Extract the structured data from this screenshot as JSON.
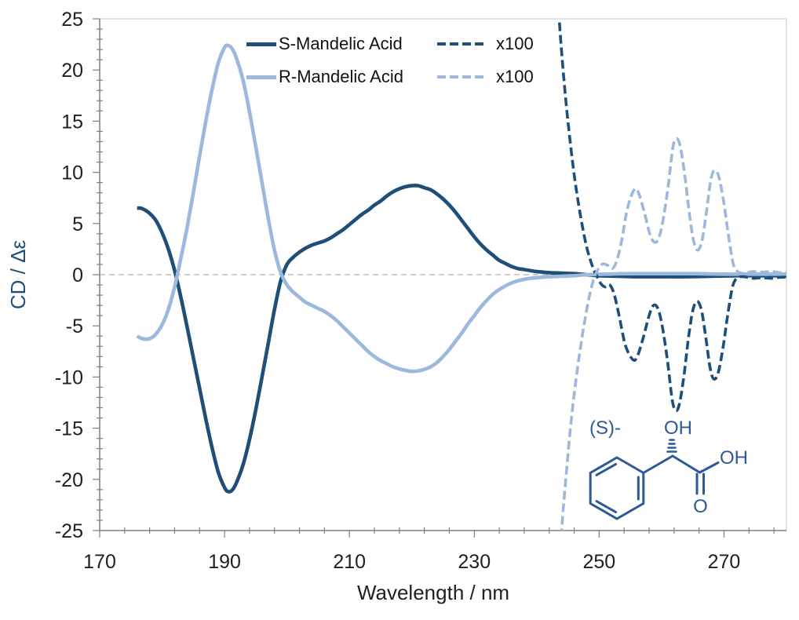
{
  "figure": {
    "y_axis_title": "CD / Δε",
    "x_axis_title": "Wavelength / nm"
  },
  "legend": {
    "rows": [
      {
        "series_label": "S-Mandelic Acid",
        "scale_label": "x100"
      },
      {
        "series_label": "R-Mandelic Acid",
        "scale_label": "x100"
      }
    ]
  },
  "structure": {
    "stereo_label": "(S)-",
    "hydroxyl_label": "OH",
    "carboxyl_oh_label": "OH",
    "carbonyl_o_label": "O"
  },
  "colors": {
    "s_series": "#1F4E79",
    "r_series": "#9CB8DC",
    "structure": "#2D5A96",
    "zero_gridline": "#BFBFBF",
    "axis": "#7F7F7F",
    "frame_border": "#D9D9D9",
    "tick_text": "#1F1F1F"
  },
  "chart_data": {
    "type": "line",
    "title": "",
    "xlabel": "Wavelength / nm",
    "ylabel": "CD / Δε",
    "xlim": [
      170,
      280
    ],
    "ylim": [
      -25,
      25
    ],
    "x_major_ticks": [
      170,
      190,
      210,
      230,
      250,
      270
    ],
    "x_minor_unit": 4,
    "y_tick_values": [
      25,
      20,
      15,
      10,
      5,
      0,
      -5,
      -10,
      -15,
      -20,
      -25
    ],
    "y_major_unit": 5,
    "y_minor_unit": 1,
    "zero_gridline": true,
    "legend_position": "top-center-inside",
    "series": [
      {
        "name": "S-Mandelic Acid",
        "style": "solid",
        "color": "#1F4E79",
        "points": [
          [
            176,
            6.5
          ],
          [
            176.6,
            6.5
          ],
          [
            177.3,
            6.3
          ],
          [
            178,
            6.0
          ],
          [
            179,
            5.3
          ],
          [
            180,
            4.1
          ],
          [
            181,
            2.5
          ],
          [
            182,
            0.4
          ],
          [
            183,
            -2.2
          ],
          [
            184,
            -5.1
          ],
          [
            185,
            -8.1
          ],
          [
            186,
            -11.1
          ],
          [
            187,
            -14.1
          ],
          [
            188,
            -16.9
          ],
          [
            189,
            -19.3
          ],
          [
            190,
            -20.8
          ],
          [
            190.6,
            -21.2
          ],
          [
            191.3,
            -21.0
          ],
          [
            192,
            -20.2
          ],
          [
            193,
            -18.5
          ],
          [
            194,
            -16.1
          ],
          [
            195,
            -13.2
          ],
          [
            196,
            -10.0
          ],
          [
            197,
            -6.7
          ],
          [
            198,
            -3.4
          ],
          [
            199,
            -0.6
          ],
          [
            200,
            1.0
          ],
          [
            201,
            1.7
          ],
          [
            202,
            2.2
          ],
          [
            203,
            2.6
          ],
          [
            204,
            2.9
          ],
          [
            205,
            3.1
          ],
          [
            206,
            3.3
          ],
          [
            207,
            3.6
          ],
          [
            208,
            4.0
          ],
          [
            209,
            4.4
          ],
          [
            210,
            4.9
          ],
          [
            211,
            5.4
          ],
          [
            212,
            5.9
          ],
          [
            213,
            6.3
          ],
          [
            214,
            6.8
          ],
          [
            215,
            7.2
          ],
          [
            216,
            7.7
          ],
          [
            217,
            8.1
          ],
          [
            218,
            8.4
          ],
          [
            219,
            8.6
          ],
          [
            220,
            8.7
          ],
          [
            221,
            8.7
          ],
          [
            222,
            8.5
          ],
          [
            223,
            8.3
          ],
          [
            224,
            7.9
          ],
          [
            225,
            7.4
          ],
          [
            226,
            6.8
          ],
          [
            227,
            6.1
          ],
          [
            228,
            5.3
          ],
          [
            229,
            4.5
          ],
          [
            230,
            3.7
          ],
          [
            231,
            3.0
          ],
          [
            232,
            2.4
          ],
          [
            233,
            1.9
          ],
          [
            234,
            1.4
          ],
          [
            235,
            1.1
          ],
          [
            236,
            0.8
          ],
          [
            237,
            0.6
          ],
          [
            238,
            0.5
          ],
          [
            239,
            0.4
          ],
          [
            240,
            0.3
          ],
          [
            242,
            0.2
          ],
          [
            244,
            0.15
          ],
          [
            246,
            0.1
          ],
          [
            248,
            0.0
          ],
          [
            250,
            -0.1
          ],
          [
            253,
            -0.15
          ],
          [
            256,
            -0.2
          ],
          [
            260,
            -0.2
          ],
          [
            264,
            -0.2
          ],
          [
            268,
            -0.15
          ],
          [
            272,
            -0.1
          ],
          [
            276,
            -0.1
          ],
          [
            280,
            -0.1
          ]
        ]
      },
      {
        "name": "R-Mandelic Acid",
        "style": "solid",
        "color": "#9CB8DC",
        "points": [
          [
            176,
            -6.0
          ],
          [
            176.6,
            -6.2
          ],
          [
            177.4,
            -6.3
          ],
          [
            178.2,
            -6.2
          ],
          [
            179,
            -5.8
          ],
          [
            180,
            -4.9
          ],
          [
            181,
            -3.4
          ],
          [
            182,
            -1.2
          ],
          [
            183,
            1.6
          ],
          [
            184,
            4.6
          ],
          [
            185,
            8.0
          ],
          [
            186,
            11.6
          ],
          [
            187,
            15.0
          ],
          [
            188,
            18.1
          ],
          [
            189,
            20.7
          ],
          [
            190,
            22.2
          ],
          [
            190.5,
            22.4
          ],
          [
            191.2,
            22.1
          ],
          [
            192,
            21.0
          ],
          [
            193,
            18.9
          ],
          [
            194,
            15.9
          ],
          [
            195,
            12.5
          ],
          [
            196,
            9.0
          ],
          [
            197,
            5.5
          ],
          [
            198,
            2.4
          ],
          [
            199,
            0.2
          ],
          [
            200,
            -1.0
          ],
          [
            201,
            -1.7
          ],
          [
            202,
            -2.2
          ],
          [
            203,
            -2.7
          ],
          [
            204,
            -3.0
          ],
          [
            205,
            -3.3
          ],
          [
            206,
            -3.6
          ],
          [
            207,
            -4.0
          ],
          [
            208,
            -4.5
          ],
          [
            209,
            -5.1
          ],
          [
            210,
            -5.7
          ],
          [
            211,
            -6.3
          ],
          [
            212,
            -6.9
          ],
          [
            213,
            -7.5
          ],
          [
            214,
            -8.0
          ],
          [
            215,
            -8.4
          ],
          [
            216,
            -8.7
          ],
          [
            217,
            -9.0
          ],
          [
            218,
            -9.2
          ],
          [
            219,
            -9.35
          ],
          [
            220,
            -9.45
          ],
          [
            221,
            -9.4
          ],
          [
            222,
            -9.25
          ],
          [
            223,
            -9.0
          ],
          [
            224,
            -8.6
          ],
          [
            225,
            -8.0
          ],
          [
            226,
            -7.3
          ],
          [
            227,
            -6.5
          ],
          [
            228,
            -5.7
          ],
          [
            229,
            -4.8
          ],
          [
            230,
            -4.0
          ],
          [
            231,
            -3.2
          ],
          [
            232,
            -2.5
          ],
          [
            233,
            -1.9
          ],
          [
            234,
            -1.45
          ],
          [
            235,
            -1.1
          ],
          [
            236,
            -0.8
          ],
          [
            237,
            -0.6
          ],
          [
            238,
            -0.45
          ],
          [
            239,
            -0.35
          ],
          [
            240,
            -0.3
          ],
          [
            242,
            -0.2
          ],
          [
            244,
            -0.15
          ],
          [
            246,
            -0.1
          ],
          [
            248,
            0.0
          ],
          [
            251,
            0.05
          ],
          [
            255,
            0.1
          ],
          [
            260,
            0.1
          ],
          [
            265,
            0.1
          ],
          [
            270,
            0.05
          ],
          [
            275,
            0.05
          ],
          [
            280,
            0.05
          ]
        ]
      },
      {
        "name": "S-Mandelic Acid x100",
        "style": "dashed",
        "color": "#1F4E79",
        "points": [
          [
            243,
            32
          ],
          [
            243.6,
            25
          ],
          [
            244.3,
            19.5
          ],
          [
            245,
            15
          ],
          [
            246,
            9.8
          ],
          [
            247,
            5.8
          ],
          [
            248,
            2.7
          ],
          [
            249,
            0.7
          ],
          [
            249.6,
            -0.1
          ],
          [
            250.3,
            -0.9
          ],
          [
            251,
            -1.2
          ],
          [
            251.7,
            -1.0
          ],
          [
            252.4,
            -1.9
          ],
          [
            253.2,
            -4.0
          ],
          [
            254.2,
            -6.9
          ],
          [
            255.4,
            -8.3
          ],
          [
            256.1,
            -8.0
          ],
          [
            257,
            -6.3
          ],
          [
            258,
            -4.0
          ],
          [
            258.7,
            -3.0
          ],
          [
            259.4,
            -3.3
          ],
          [
            260.1,
            -5.0
          ],
          [
            260.9,
            -8.2
          ],
          [
            261.7,
            -12.2
          ],
          [
            262.3,
            -13.3
          ],
          [
            262.9,
            -12.5
          ],
          [
            263.6,
            -9.8
          ],
          [
            264.3,
            -6.2
          ],
          [
            265,
            -3.5
          ],
          [
            265.7,
            -2.6
          ],
          [
            266.4,
            -3.5
          ],
          [
            267.1,
            -6.2
          ],
          [
            267.8,
            -9.2
          ],
          [
            268.4,
            -10.2
          ],
          [
            269.1,
            -9.5
          ],
          [
            269.9,
            -6.9
          ],
          [
            270.6,
            -3.9
          ],
          [
            271.4,
            -1.1
          ],
          [
            272.2,
            -0.3
          ],
          [
            273.2,
            -0.2
          ],
          [
            274.5,
            -0.35
          ],
          [
            276,
            -0.3
          ],
          [
            277.5,
            -0.35
          ],
          [
            279,
            -0.25
          ],
          [
            280,
            -0.25
          ]
        ]
      },
      {
        "name": "R-Mandelic Acid x100",
        "style": "dashed",
        "color": "#9CB8DC",
        "points": [
          [
            243.3,
            -33
          ],
          [
            244,
            -25
          ],
          [
            244.8,
            -19
          ],
          [
            245.6,
            -13.8
          ],
          [
            246.5,
            -9.3
          ],
          [
            247.5,
            -5.2
          ],
          [
            248.4,
            -2.2
          ],
          [
            249.2,
            -0.3
          ],
          [
            249.9,
            0.6
          ],
          [
            250.6,
            1.05
          ],
          [
            251.4,
            0.9
          ],
          [
            252.1,
            0.6
          ],
          [
            252.8,
            1.3
          ],
          [
            253.6,
            3.3
          ],
          [
            254.5,
            6.4
          ],
          [
            255.6,
            8.3
          ],
          [
            256.3,
            8.0
          ],
          [
            257.2,
            6.2
          ],
          [
            258.1,
            4.0
          ],
          [
            258.8,
            3.2
          ],
          [
            259.5,
            3.5
          ],
          [
            260.2,
            5.2
          ],
          [
            261,
            8.4
          ],
          [
            261.8,
            12.4
          ],
          [
            262.4,
            13.3
          ],
          [
            263,
            12.5
          ],
          [
            263.7,
            9.8
          ],
          [
            264.4,
            6.2
          ],
          [
            265.1,
            3.4
          ],
          [
            265.8,
            2.4
          ],
          [
            266.5,
            3.4
          ],
          [
            267.2,
            6.2
          ],
          [
            267.9,
            9.3
          ],
          [
            268.5,
            10.2
          ],
          [
            269.2,
            9.5
          ],
          [
            270,
            6.9
          ],
          [
            270.7,
            3.9
          ],
          [
            271.5,
            1.0
          ],
          [
            272.3,
            0.25
          ],
          [
            273.3,
            0.15
          ],
          [
            274.6,
            0.3
          ],
          [
            276.1,
            0.25
          ],
          [
            277.6,
            0.3
          ],
          [
            279.1,
            0.2
          ],
          [
            280,
            0.2
          ]
        ]
      }
    ]
  }
}
